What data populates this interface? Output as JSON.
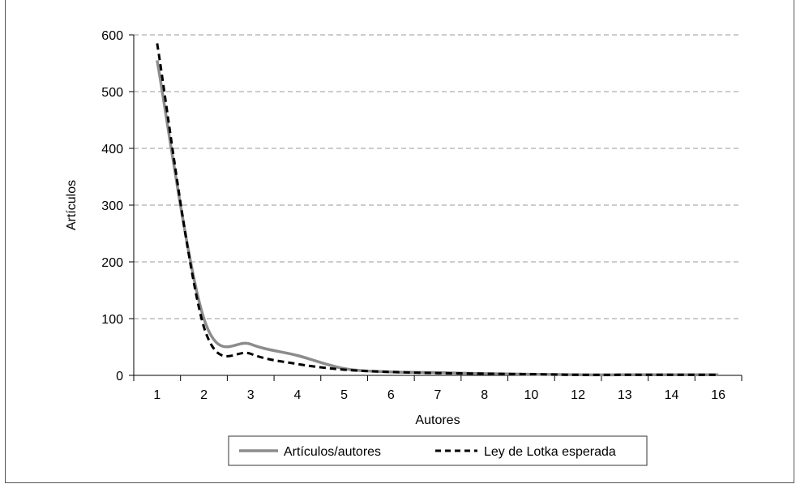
{
  "chart_data": {
    "type": "line",
    "xlabel": "Autores",
    "ylabel": "Artículos",
    "categories": [
      "1",
      "2",
      "3",
      "4",
      "5",
      "6",
      "7",
      "8",
      "10",
      "12",
      "13",
      "14",
      "16"
    ],
    "ylim": [
      0,
      600
    ],
    "yticks": [
      "0",
      "100",
      "200",
      "300",
      "400",
      "500",
      "600"
    ],
    "grid": "horizontal dashed",
    "legend_position": "bottom",
    "series": [
      {
        "name": "Artículos/autores",
        "style": "solid",
        "color": "#8c8c8c",
        "values": [
          555,
          100,
          55,
          35,
          12,
          6,
          5,
          3,
          2,
          1,
          1,
          1,
          1
        ]
      },
      {
        "name": "Ley de Lotka esperada",
        "style": "dashed",
        "color": "#000000",
        "values": [
          585,
          85,
          38,
          20,
          10,
          6,
          4,
          3,
          2,
          1,
          1,
          1,
          1
        ]
      }
    ]
  }
}
